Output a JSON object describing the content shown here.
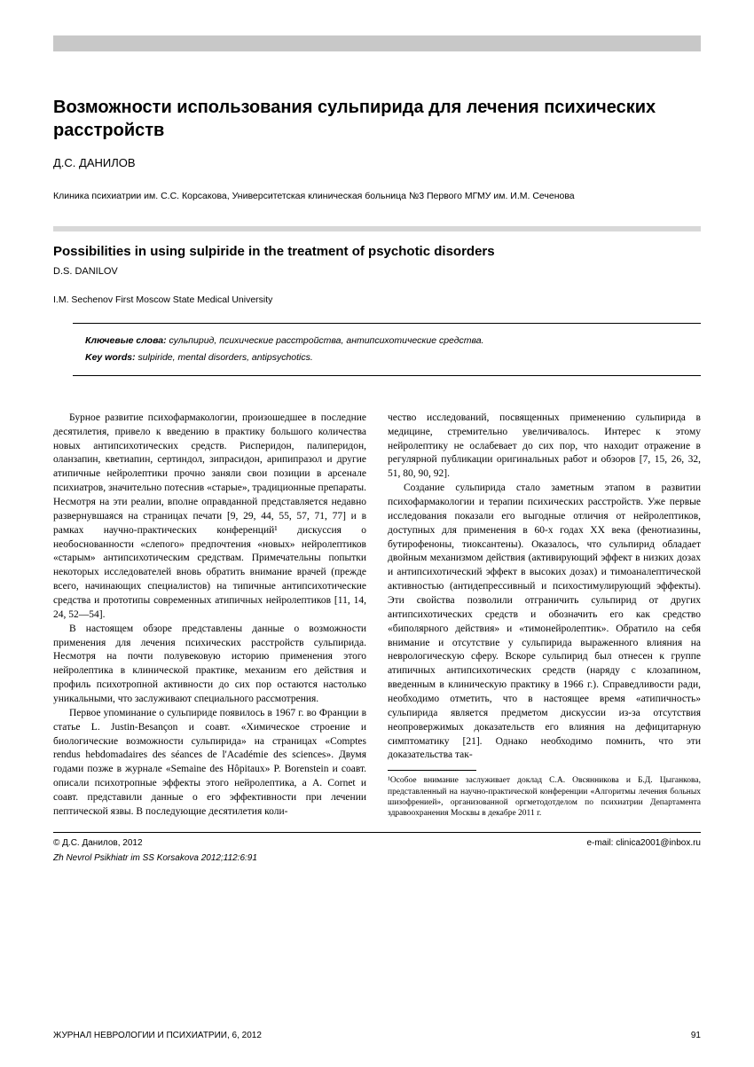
{
  "header": {
    "title_ru": "Возможности использования сульпирида для лечения психических расстройств",
    "author_ru": "Д.С. ДАНИЛОВ",
    "affiliation_ru": "Клиника психиатрии им. С.С. Корсакова, Университетская клиническая больница №3 Первого МГМУ им. И.М. Сеченова",
    "title_en": "Possibilities in using sulpiride in the treatment of psychotic disorders",
    "author_en": "D.S. DANILOV",
    "affiliation_en": "I.M. Sechenov First Moscow State Medical University"
  },
  "keywords": {
    "label_ru": "Ключевые слова:",
    "text_ru": "сульпирид, психические расстройства, антипсихотические средства.",
    "label_en": "Key words:",
    "text_en": "sulpiride, mental disorders, antipsychotics."
  },
  "body": {
    "left_p1": "Бурное развитие психофармакологии, произошедшее в последние десятилетия, привело к введению в практику большого количества новых антипсихотических средств. Рисперидон, палиперидон, оланзапин, кветиапин, сертиндол, зипрасидон, арипипразол и другие атипичные нейролептики прочно заняли свои позиции в арсенале психиатров, значительно потеснив «старые», традиционные препараты. Несмотря на эти реалии, вполне оправданной представляется недавно развернувшаяся на страницах печати [9, 29, 44, 55, 57, 71, 77] и в рамках научно-практических конференций¹ дискуссия о необоснованности «слепого» предпочтения «новых» нейролептиков «старым» антипсихотическим средствам. Примечательны попытки некоторых исследователей вновь обратить внимание врачей (прежде всего, начинающих специалистов) на типичные антипсихотические средства и прототипы современных атипичных нейролептиков [11, 14, 24, 52—54].",
    "left_p2": "В настоящем обзоре представлены данные о возможности применения для лечения психических расстройств сульпирида. Несмотря на почти полувековую историю применения этого нейролептика в клинической практике, механизм его действия и профиль психотропной активности до сих пор остаются настолько уникальными, что заслуживают специального рассмотрения.",
    "left_p3": "Первое упоминание о сульпириде появилось в 1967 г. во Франции в статье L. Justin-Besançon и соавт. «Химическое строение и биологические возможности сульпирида» на страницах «Comptes rendus hebdomadaires des séances de l'Académie des sciences». Двумя годами позже в журнале «Semaine des Hôpitaux» P. Borenstein и соавт. описали психотропные эффекты этого нейролептика, а A. Cornet и соавт. представили данные о его эффективности при лечении пептической язвы. В последующие десятилетия коли-",
    "right_p1a": "чество исследований, посвященных применению сульпирида в медицине, стремительно увеличивалось. Интерес к этому нейролептику не ослабевает до сих пор, что находит отражение в регулярной публикации оригинальных работ и обзоров [7, 15, 26, 32, 51, 80, 90, 92].",
    "right_p2": "Создание сульпирида стало заметным этапом в развитии психофармакологии и терапии психических расстройств. Уже первые исследования показали его выгодные отличия от нейролептиков, доступных для применения в 60-х годах XX века (фенотиазины, бутирофеноны, тиоксантены). Оказалось, что сульпирид обладает двойным механизмом действия (активирующий эффект в низких дозах и антипсихотический эффект в высоких дозах) и тимоаналептической активностью (антидепрессивный и психостимулирующий эффекты). Эти свойства позволили отграничить сульпирид от других антипсихотических средств и обозначить его как средство «биполярного действия» и «тимонейролептик». Обратило на себя внимание и отсутствие у сульпирида выраженного влияния на неврологическую сферу. Вскоре сульпирид был отнесен к группе атипичных антипсихотических средств (наряду с клозапином, введенным в клиническую практику в 1966 г.). Справедливости ради, необходимо отметить, что в настоящее время «атипичность» сульпирида является предметом дискуссии из-за отсутствия неопровержимых доказательств его влияния на дефицитарную симптоматику [21]. Однако необходимо помнить, что эти доказательства так-",
    "footnote": "¹Особое внимание заслуживает доклад С.А. Овсянникова и Б.Д. Цыганкова, представленный на научно-практической конференции «Алгоритмы лечения больных шизофренией», организованной оргметодотделом по психиатрии Департамента здравоохранения Москвы в декабре 2011 г."
  },
  "bottom": {
    "copyright": "© Д.С. Данилов, 2012",
    "email": "e-mail: clinica2001@inbox.ru",
    "citation": "Zh Nevrol Psikhiatr im SS Korsakova 2012;112:6:91"
  },
  "footer": {
    "journal": "ЖУРНАЛ НЕВРОЛОГИИ И ПСИХИАТРИИ, 6, 2012",
    "page": "91"
  }
}
